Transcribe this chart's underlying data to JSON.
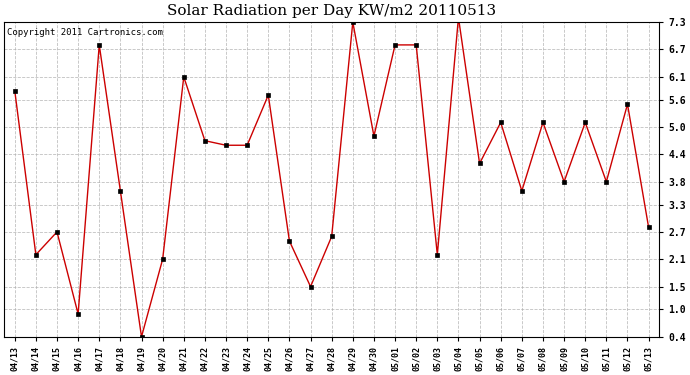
{
  "title": "Solar Radiation per Day KW/m2 20110513",
  "copyright": "Copyright 2011 Cartronics.com",
  "dates": [
    "04/13",
    "04/14",
    "04/15",
    "04/16",
    "04/17",
    "04/18",
    "04/19",
    "04/20",
    "04/21",
    "04/22",
    "04/23",
    "04/24",
    "04/25",
    "04/26",
    "04/27",
    "04/28",
    "04/29",
    "04/30",
    "05/01",
    "05/02",
    "05/03",
    "05/04",
    "05/05",
    "05/06",
    "05/07",
    "05/08",
    "05/09",
    "05/10",
    "05/11",
    "05/12",
    "05/13"
  ],
  "values": [
    5.8,
    2.2,
    2.7,
    0.9,
    6.8,
    3.6,
    0.4,
    2.1,
    6.1,
    4.7,
    4.6,
    4.6,
    5.7,
    2.5,
    1.5,
    2.6,
    7.3,
    4.8,
    6.8,
    6.8,
    2.2,
    7.4,
    4.2,
    5.1,
    3.6,
    5.1,
    3.8,
    5.1,
    3.8,
    5.5,
    2.8
  ],
  "line_color": "#cc0000",
  "marker": "s",
  "marker_size": 2.5,
  "ylim": [
    0.4,
    7.3
  ],
  "yticks": [
    0.4,
    1.0,
    1.5,
    2.1,
    2.7,
    3.3,
    3.8,
    4.4,
    5.0,
    5.6,
    6.1,
    6.7,
    7.3
  ],
  "bg_color": "#ffffff",
  "plot_bg_color": "#ffffff",
  "grid_color": "#b0b0b0",
  "title_fontsize": 11,
  "copyright_fontsize": 6.5
}
